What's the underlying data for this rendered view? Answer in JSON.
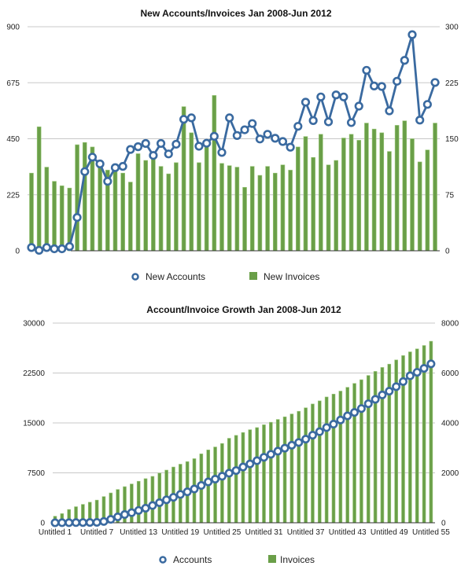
{
  "colors": {
    "bar": "#6a9f48",
    "bar_edge": "#9cc97c",
    "line": "#3a6aa0",
    "marker_fill": "#ffffff",
    "grid": "#c8c8c8"
  },
  "chart_data": [
    {
      "type": "bar+line",
      "title": "New Accounts/Invoices Jan 2008-Jun 2012",
      "grid": true,
      "legend_placement": "bottom",
      "left_axis": {
        "ticks": [
          "0",
          "225",
          "450",
          "675",
          "900"
        ],
        "ylim": [
          0,
          900
        ]
      },
      "right_axis": {
        "ticks": [
          "0",
          "75",
          "150",
          "225",
          "300"
        ],
        "ylim": [
          0,
          300
        ]
      },
      "series": [
        {
          "name": "New Accounts",
          "kind": "line",
          "axis": "left",
          "values": [
            13,
            2,
            13,
            8,
            8,
            17,
            134,
            318,
            376,
            349,
            279,
            334,
            339,
            407,
            418,
            431,
            383,
            431,
            389,
            428,
            528,
            534,
            420,
            432,
            460,
            395,
            534,
            463,
            486,
            511,
            449,
            468,
            452,
            439,
            416,
            500,
            597,
            523,
            618,
            518,
            626,
            618,
            515,
            581,
            725,
            662,
            660,
            562,
            681,
            765,
            868,
            525,
            588,
            676
          ]
        },
        {
          "name": "New Invoices",
          "kind": "bar",
          "axis": "right",
          "values": [
            104,
            166,
            112,
            93,
            87,
            84,
            142,
            145,
            139,
            113,
            108,
            108,
            104,
            92,
            130,
            121,
            124,
            113,
            103,
            118,
            193,
            158,
            118,
            140,
            208,
            117,
            114,
            112,
            85,
            113,
            101,
            113,
            104,
            115,
            108,
            139,
            153,
            125,
            156,
            115,
            121,
            151,
            156,
            148,
            171,
            163,
            158,
            133,
            168,
            174,
            150,
            119,
            135,
            171
          ]
        }
      ]
    },
    {
      "type": "bar+line",
      "title": "Account/Invoice Growth Jan 2008-Jun 2012",
      "grid": true,
      "legend_placement": "bottom",
      "left_axis": {
        "ticks": [
          "0",
          "7500",
          "15000",
          "22500",
          "30000"
        ],
        "ylim": [
          0,
          30000
        ]
      },
      "right_axis": {
        "ticks": [
          "0",
          "2000",
          "4000",
          "6000",
          "8000"
        ],
        "ylim": [
          0,
          8000
        ]
      },
      "x_tick_labels": [
        "Untitled 1",
        "Untitled 7",
        "Untitled 13",
        "Untitled 19",
        "Untitled 25",
        "Untitled 31",
        "Untitled 37",
        "Untitled 43",
        "Untitled 49",
        "Untitled 55"
      ],
      "categories_count": 55,
      "series": [
        {
          "name": "Accounts",
          "kind": "line",
          "axis": "left",
          "values": [
            0,
            13,
            15,
            28,
            36,
            44,
            61,
            195,
            513,
            889,
            1238,
            1517,
            1851,
            2190,
            2597,
            3015,
            3446,
            3829,
            4260,
            4649,
            5077,
            5605,
            6139,
            6559,
            6991,
            7451,
            7846,
            8380,
            8843,
            9329,
            9840,
            10289,
            10757,
            11209,
            11648,
            12064,
            12564,
            13161,
            13684,
            14302,
            14820,
            15446,
            16064,
            16579,
            17160,
            17885,
            18547,
            19207,
            19769,
            20450,
            21215,
            22083,
            22608,
            23196,
            23872
          ]
        },
        {
          "name": "Invoices",
          "kind": "bar",
          "axis": "right",
          "values": [
            262,
            366,
            532,
            644,
            737,
            824,
            908,
            1050,
            1195,
            1334,
            1447,
            1555,
            1663,
            1767,
            1859,
            1989,
            2110,
            2234,
            2347,
            2450,
            2568,
            2761,
            2919,
            3037,
            3177,
            3385,
            3502,
            3616,
            3728,
            3813,
            3926,
            4027,
            4140,
            4244,
            4359,
            4467,
            4606,
            4759,
            4884,
            5040,
            5155,
            5276,
            5427,
            5583,
            5731,
            5902,
            6065,
            6223,
            6356,
            6524,
            6698,
            6848,
            6967,
            7102,
            7273
          ]
        }
      ]
    }
  ]
}
